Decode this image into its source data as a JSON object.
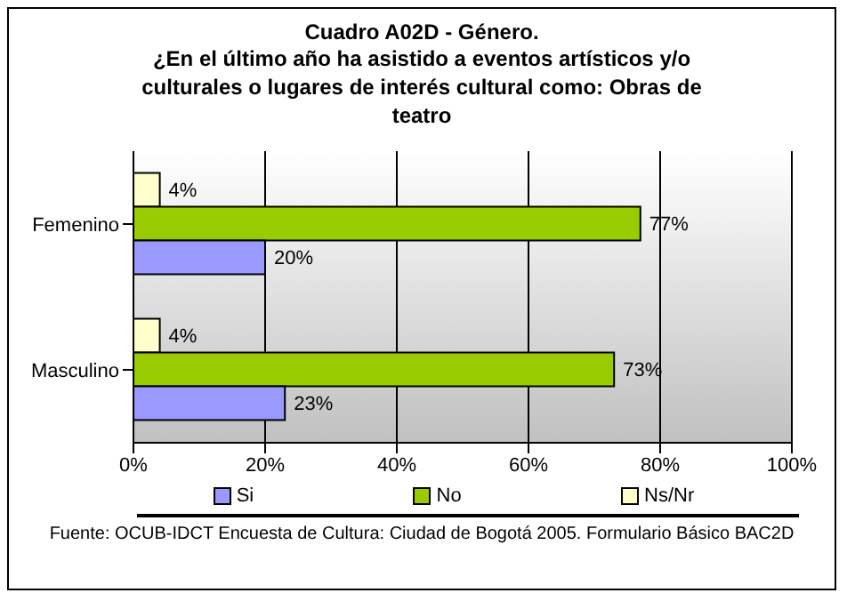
{
  "chart_data": {
    "type": "bar",
    "orientation": "horizontal",
    "title": "Cuadro A02D - Género.",
    "subtitle": "¿En el último año ha asistido a eventos artísticos y/o culturales o lugares de interés cultural como: Obras de teatro",
    "categories": [
      "Femenino",
      "Masculino"
    ],
    "series": [
      {
        "name": "Si",
        "color": "#9999ff",
        "values": [
          20,
          23
        ],
        "value_labels": [
          "20%",
          "23%"
        ]
      },
      {
        "name": "No",
        "color": "#99cc00",
        "values": [
          77,
          73
        ],
        "value_labels": [
          "77%",
          "73%"
        ]
      },
      {
        "name": "Ns/Nr",
        "color": "#ffffcc",
        "values": [
          4,
          4
        ],
        "value_labels": [
          "4%",
          "4%"
        ]
      }
    ],
    "xlim": [
      0,
      100
    ],
    "xticks": [
      {
        "value": 0,
        "label": "0%"
      },
      {
        "value": 20,
        "label": "20%"
      },
      {
        "value": 40,
        "label": "40%"
      },
      {
        "value": 60,
        "label": "60%"
      },
      {
        "value": 80,
        "label": "80%"
      },
      {
        "value": 100,
        "label": "100%"
      }
    ],
    "grid": "x",
    "legend": "bottom",
    "annotations": [
      "Fuente: OCUB-IDCT Encuesta de Cultura: Ciudad de Bogotá 2005. Formulario Básico BAC2D"
    ]
  }
}
